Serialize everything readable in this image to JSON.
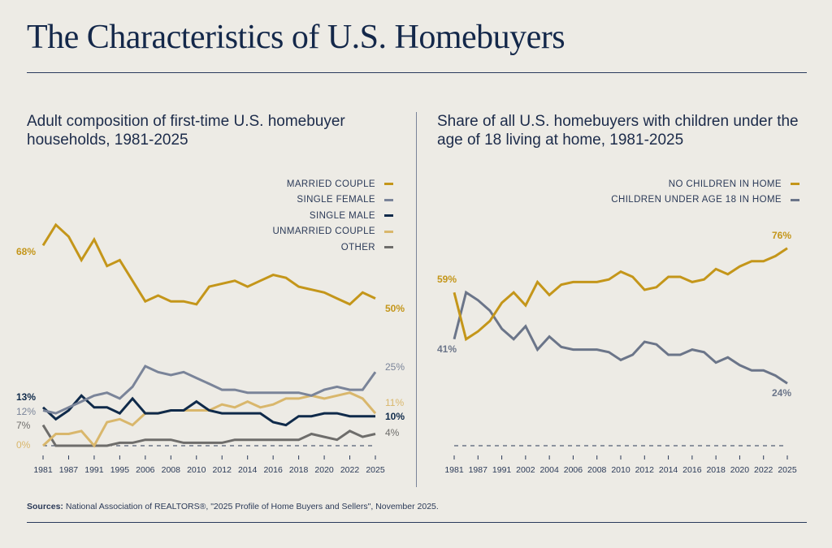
{
  "title": "The Characteristics of U.S. Homebuyers",
  "sources": {
    "label": "Sources:",
    "text": " National Association of REALTORS®, \"2025 Profile of Home Buyers and Sellers\", November 2025."
  },
  "colors": {
    "background": "#edebe5",
    "married": "#c4961a",
    "single_female": "#7a8499",
    "single_male": "#0f2a4a",
    "unmarried": "#d9b76c",
    "other": "#6e6d6b",
    "no_children": "#c4961a",
    "children": "#6b7589"
  },
  "chart_data": [
    {
      "type": "line",
      "title": "Adult composition of first-time U.S. homebuyer households, 1981-2025",
      "legend_position": "top-right",
      "grid": false,
      "ylim": [
        0,
        78
      ],
      "tick_labels": [
        "1981",
        "1987",
        "1991",
        "1995",
        "2006",
        "2008",
        "2010",
        "2012",
        "2014",
        "2016",
        "2018",
        "2020",
        "2022",
        "2025"
      ],
      "series": [
        {
          "name": "MARRIED COUPLE",
          "color": "#c4961a",
          "values": [
            68,
            75,
            71,
            63,
            70,
            61,
            63,
            56,
            49,
            51,
            49,
            49,
            48,
            54,
            55,
            56,
            54,
            56,
            58,
            57,
            54,
            53,
            52,
            50,
            48,
            52,
            50
          ],
          "start_label": "68%",
          "end_label": "50%"
        },
        {
          "name": "SINGLE FEMALE",
          "color": "#7a8499",
          "values": [
            12,
            11,
            13,
            15,
            17,
            18,
            16,
            20,
            27,
            25,
            24,
            25,
            23,
            21,
            19,
            19,
            18,
            18,
            18,
            18,
            18,
            17,
            19,
            20,
            19,
            19,
            25
          ],
          "start_label": "12%",
          "end_label": "25%"
        },
        {
          "name": "SINGLE MALE",
          "color": "#0f2a4a",
          "values": [
            13,
            9,
            12,
            17,
            13,
            13,
            11,
            16,
            11,
            11,
            12,
            12,
            15,
            12,
            11,
            11,
            11,
            11,
            8,
            7,
            10,
            10,
            11,
            11,
            10,
            10,
            10
          ],
          "start_label": "13%",
          "end_label": "10%"
        },
        {
          "name": "UNMARRIED COUPLE",
          "color": "#d9b76c",
          "values": [
            0,
            4,
            4,
            5,
            0,
            8,
            9,
            7,
            11,
            11,
            12,
            12,
            12,
            12,
            14,
            13,
            15,
            13,
            14,
            16,
            16,
            17,
            16,
            17,
            18,
            16,
            11
          ],
          "start_label": "0%",
          "end_label": "11%"
        },
        {
          "name": "OTHER",
          "color": "#6e6d6b",
          "values": [
            7,
            0,
            0,
            0,
            0,
            0,
            1,
            1,
            2,
            2,
            2,
            1,
            1,
            1,
            1,
            2,
            2,
            2,
            2,
            2,
            2,
            4,
            3,
            2,
            5,
            3,
            4
          ],
          "start_label": "7%",
          "end_label": "4%"
        }
      ]
    },
    {
      "type": "line",
      "title": "Share of all U.S. homebuyers with children under the age of 18 living at home, 1981-2025",
      "legend_position": "top-right",
      "grid": false,
      "ylim": [
        0,
        80
      ],
      "tick_labels": [
        "1981",
        "1987",
        "1991",
        "2002",
        "2004",
        "2006",
        "2008",
        "2010",
        "2012",
        "2014",
        "2016",
        "2018",
        "2020",
        "2022",
        "2025"
      ],
      "series": [
        {
          "name": "NO CHILDREN IN HOME",
          "color": "#c4961a",
          "values": [
            59,
            41,
            44,
            48,
            55,
            59,
            54,
            63,
            58,
            62,
            63,
            63,
            63,
            64,
            67,
            65,
            60,
            61,
            65,
            65,
            63,
            64,
            68,
            66,
            69,
            71,
            71,
            73,
            76
          ],
          "start_label": "59%",
          "end_label": "76%"
        },
        {
          "name": "CHILDREN UNDER AGE 18 IN HOME",
          "color": "#6b7589",
          "values": [
            41,
            59,
            56,
            52,
            45,
            41,
            46,
            37,
            42,
            38,
            37,
            37,
            37,
            36,
            33,
            35,
            40,
            39,
            35,
            35,
            37,
            36,
            32,
            34,
            31,
            29,
            29,
            27,
            24
          ],
          "start_label": "41%",
          "end_label": "24%"
        }
      ]
    }
  ]
}
